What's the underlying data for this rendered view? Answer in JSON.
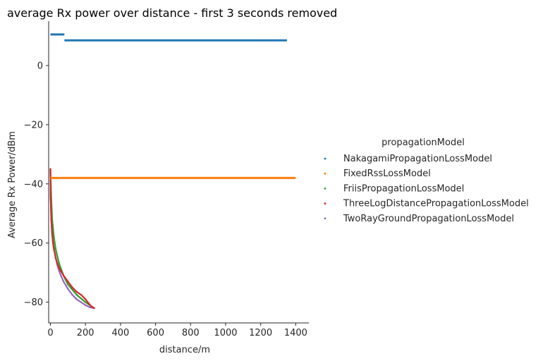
{
  "chart_data": {
    "type": "scatter",
    "title": "average Rx power over distance - first 3 seconds removed",
    "xlabel": "distance/m",
    "ylabel": "Average Rx Power/dBm",
    "xlim": [
      -10,
      1475
    ],
    "ylim": [
      -87,
      15
    ],
    "xticks": [
      0,
      200,
      400,
      600,
      800,
      1000,
      1200,
      1400
    ],
    "yticks": [
      0,
      -20,
      -40,
      -60,
      -80
    ],
    "xtick_labels": [
      "0",
      "200",
      "400",
      "600",
      "800",
      "1000",
      "1200",
      "1400"
    ],
    "ytick_labels": [
      "0",
      "−20",
      "−40",
      "−60",
      "−80"
    ],
    "grid": false,
    "legend_placement": "right",
    "legend_title": "propagationModel",
    "series": [
      {
        "name": "NakagamiPropagationLossModel",
        "color": "#1f77b4",
        "segments": [
          {
            "x_start": 0,
            "x_end": 80,
            "y": 10.5
          },
          {
            "x_start": 80,
            "x_end": 1350,
            "y": 8.5
          }
        ]
      },
      {
        "name": "FixedRssLossModel",
        "color": "#ff7f0e",
        "segments": [
          {
            "x_start": 0,
            "x_end": 1400,
            "y": -38
          }
        ]
      },
      {
        "name": "FriisPropagationLossModel",
        "color": "#2ca02c",
        "points": [
          [
            0,
            -35
          ],
          [
            5,
            -45
          ],
          [
            10,
            -52
          ],
          [
            20,
            -58
          ],
          [
            30,
            -62
          ],
          [
            50,
            -67
          ],
          [
            75,
            -71
          ],
          [
            100,
            -74
          ],
          [
            150,
            -77.5
          ],
          [
            200,
            -80
          ],
          [
            250,
            -82
          ]
        ]
      },
      {
        "name": "ThreeLogDistancePropagationLossModel",
        "color": "#d62728",
        "points": [
          [
            0,
            -35
          ],
          [
            1,
            -44
          ],
          [
            3,
            -48
          ],
          [
            5,
            -52
          ],
          [
            8,
            -55
          ],
          [
            10,
            -57
          ],
          [
            15,
            -60
          ],
          [
            20,
            -62
          ],
          [
            30,
            -65
          ],
          [
            40,
            -67
          ],
          [
            50,
            -68.5
          ],
          [
            60,
            -69.5
          ],
          [
            75,
            -71
          ],
          [
            100,
            -73
          ],
          [
            125,
            -75
          ],
          [
            150,
            -76.5
          ],
          [
            175,
            -77.5
          ],
          [
            200,
            -79
          ],
          [
            220,
            -80.5
          ],
          [
            235,
            -81.5
          ],
          [
            250,
            -82
          ]
        ]
      },
      {
        "name": "TwoRayGroundPropagationLossModel",
        "color": "#9467bd",
        "points": [
          [
            0,
            -35
          ],
          [
            1,
            -44
          ],
          [
            3,
            -48
          ],
          [
            5,
            -52
          ],
          [
            8,
            -55
          ],
          [
            10,
            -57
          ],
          [
            15,
            -60
          ],
          [
            20,
            -62
          ],
          [
            30,
            -65
          ],
          [
            40,
            -67.5
          ],
          [
            50,
            -69.5
          ],
          [
            60,
            -71
          ],
          [
            75,
            -73
          ],
          [
            100,
            -75.5
          ],
          [
            125,
            -77.5
          ],
          [
            150,
            -79
          ],
          [
            175,
            -80
          ],
          [
            200,
            -81
          ],
          [
            225,
            -81.7
          ],
          [
            250,
            -82
          ]
        ]
      }
    ]
  }
}
